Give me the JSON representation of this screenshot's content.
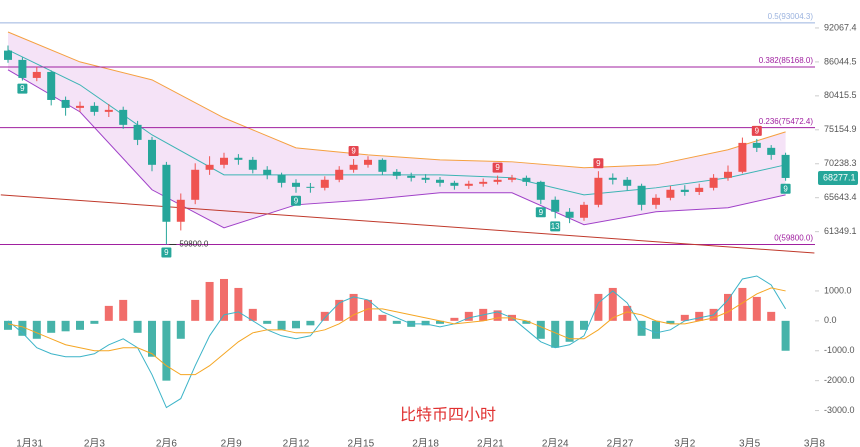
{
  "chart_data": {
    "type": "candlestick",
    "title": "比特币四小时",
    "log_scale": true,
    "ylim": [
      58560,
      97340
    ],
    "yticks": [
      92067.4,
      86044.5,
      80415.5,
      75154.9,
      70238.3,
      65643.4,
      61349.1
    ],
    "up_color": "#ef5350",
    "down_color": "#26a69a",
    "x_labels": [
      {
        "candle": 1.5,
        "label": "1月31"
      },
      {
        "candle": 6,
        "label": "2月3"
      },
      {
        "candle": 11,
        "label": "2月6"
      },
      {
        "candle": 15.5,
        "label": "2月9"
      },
      {
        "candle": 20,
        "label": "2月12"
      },
      {
        "candle": 24.5,
        "label": "2月15"
      },
      {
        "candle": 29,
        "label": "2月18"
      },
      {
        "candle": 33.5,
        "label": "2月21"
      },
      {
        "candle": 38,
        "label": "2月24"
      },
      {
        "candle": 42.5,
        "label": "2月27"
      },
      {
        "candle": 47,
        "label": "3月2"
      },
      {
        "candle": 51.5,
        "label": "3月5"
      },
      {
        "candle": 56,
        "label": "3月8"
      }
    ],
    "candles": {
      "open": [
        88000,
        86390,
        83340,
        84340,
        79760,
        78510,
        78830,
        77890,
        78200,
        75900,
        73660,
        70090,
        62570,
        65370,
        69400,
        70090,
        71080,
        70790,
        69400,
        68700,
        67620,
        67080,
        66950,
        68030,
        69400,
        70090,
        70790,
        69120,
        68570,
        68300,
        68030,
        67620,
        67220,
        67490,
        67750,
        68030,
        68300,
        67750,
        65370,
        63830,
        63070,
        64720,
        68300,
        68030,
        67220,
        64720,
        65630,
        66690,
        66400,
        66950,
        68300,
        69120,
        73220,
        72500,
        71490
      ],
      "high": [
        88900,
        86800,
        85200,
        84600,
        80300,
        79500,
        79400,
        79100,
        78700,
        76500,
        74100,
        70500,
        66200,
        70300,
        71300,
        71800,
        71600,
        71200,
        69900,
        69000,
        68100,
        67600,
        68500,
        69900,
        70900,
        71300,
        71000,
        69500,
        69000,
        68800,
        68400,
        67900,
        67900,
        68200,
        68600,
        68700,
        68600,
        67900,
        65800,
        64300,
        65100,
        69200,
        68900,
        68400,
        67500,
        66100,
        67200,
        67300,
        67500,
        68800,
        70000,
        74000,
        73800,
        72900,
        71800
      ],
      "low": [
        85900,
        82900,
        82800,
        78900,
        77300,
        77900,
        77300,
        77100,
        75300,
        72900,
        69200,
        59800,
        61500,
        64800,
        68700,
        69600,
        70100,
        68900,
        68100,
        67000,
        66300,
        66300,
        66600,
        67700,
        69000,
        69700,
        68700,
        68100,
        67800,
        67600,
        67100,
        66700,
        66800,
        67100,
        67400,
        67700,
        67200,
        64800,
        63000,
        62400,
        62700,
        64400,
        67400,
        66600,
        64000,
        64200,
        65300,
        65900,
        66000,
        66600,
        67900,
        68900,
        71900,
        70800,
        67900
      ],
      "close": [
        86390,
        83340,
        84340,
        79760,
        78510,
        78830,
        77890,
        78200,
        75900,
        73660,
        70090,
        62570,
        65370,
        69400,
        70090,
        71080,
        70790,
        69400,
        68700,
        67620,
        67080,
        66950,
        68030,
        69400,
        70090,
        70790,
        69120,
        68570,
        68300,
        68030,
        67620,
        67220,
        67490,
        67750,
        68030,
        68300,
        67750,
        65370,
        63830,
        63070,
        64720,
        68300,
        68030,
        67220,
        64720,
        65630,
        66690,
        66400,
        66950,
        68300,
        69120,
        73220,
        72500,
        71490,
        68277.1
      ]
    },
    "bollinger": {
      "candle": [
        0,
        5,
        10,
        15,
        20,
        25,
        30,
        35,
        40,
        45,
        50,
        54
      ],
      "upper": [
        91330,
        86040,
        83020,
        76960,
        72500,
        71490,
        70790,
        70510,
        69680,
        70090,
        72220,
        74850
      ],
      "middle": [
        88120,
        82190,
        74400,
        68700,
        68700,
        68700,
        68700,
        68300,
        66020,
        66950,
        68300,
        70090
      ],
      "lower": [
        84690,
        77890,
        66690,
        61820,
        64720,
        65370,
        66290,
        66290,
        62200,
        63830,
        64340,
        66020
      ],
      "upper_color": "#f5a040",
      "middle_color": "#3cb4b4",
      "lower_color": "#a040c8",
      "fill": "#f3dcf5"
    },
    "fib_levels": [
      {
        "price": 93004.3,
        "label": "0.5(93004.3)",
        "color": "#9bb3df"
      },
      {
        "price": 85168.0,
        "label": "0.382(85168.0)",
        "color": "#a020a0"
      },
      {
        "price": 75472.4,
        "label": "0.236(75472.4)",
        "color": "#a020a0"
      },
      {
        "price": 59800.0,
        "label": "0(59800.0)",
        "color": "#a020a0"
      }
    ],
    "trend_line": {
      "candles": [
        -0.5,
        56
      ],
      "prices": [
        66020,
        58790
      ],
      "color": "#c0392b"
    },
    "low_marker": {
      "candle": 11,
      "value": 59800,
      "label": "59800.0"
    },
    "last_price": 68277.1,
    "last_price_color": "#26a69a",
    "td_marks": [
      {
        "candle": 1,
        "count": 9,
        "side": "below",
        "color": "#26a69a"
      },
      {
        "candle": 11,
        "count": 9,
        "side": "below",
        "color": "#26a69a"
      },
      {
        "candle": 20,
        "count": 9,
        "side": "below",
        "color": "#26a69a"
      },
      {
        "candle": 24,
        "count": 9,
        "side": "above",
        "color": "#e5454f"
      },
      {
        "candle": 34,
        "count": 9,
        "side": "above",
        "color": "#e5454f"
      },
      {
        "candle": 37,
        "count": 9,
        "side": "below",
        "color": "#26a69a"
      },
      {
        "candle": 38,
        "count": 13,
        "side": "below",
        "color": "#26a69a"
      },
      {
        "candle": 41,
        "count": 9,
        "side": "above",
        "color": "#e5454f"
      },
      {
        "candle": 52,
        "count": 9,
        "side": "above",
        "color": "#e5454f"
      },
      {
        "candle": 54,
        "count": 9,
        "side": "below",
        "color": "#26a69a"
      }
    ],
    "macd": {
      "ylim": [
        -3650,
        1700
      ],
      "yticks": [
        {
          "value": 1000,
          "label": "1000.0"
        },
        {
          "value": 0,
          "label": "0.0"
        },
        {
          "value": -1000,
          "label": "-1000.0"
        },
        {
          "value": -2000,
          "label": "-2000.0"
        },
        {
          "value": -3000,
          "label": "-3000.0"
        }
      ],
      "histogram": [
        -300,
        -500,
        -600,
        -400,
        -350,
        -300,
        -100,
        500,
        700,
        -400,
        -1200,
        -2000,
        -600,
        700,
        1300,
        1400,
        1100,
        400,
        -100,
        -300,
        -250,
        -150,
        300,
        700,
        900,
        700,
        200,
        -100,
        -200,
        -150,
        -100,
        100,
        300,
        400,
        350,
        200,
        -100,
        -600,
        -900,
        -700,
        -300,
        900,
        1100,
        500,
        -500,
        -600,
        -100,
        200,
        300,
        400,
        900,
        1100,
        800,
        300,
        -1000
      ],
      "dif": [
        0,
        -400,
        -900,
        -1100,
        -1200,
        -1200,
        -1100,
        -800,
        -600,
        -900,
        -1800,
        -2900,
        -2600,
        -1500,
        -500,
        200,
        300,
        0,
        -300,
        -500,
        -600,
        -500,
        100,
        600,
        800,
        700,
        300,
        100,
        -100,
        -100,
        -200,
        -100,
        100,
        200,
        300,
        100,
        -300,
        -700,
        -900,
        -800,
        -500,
        600,
        1000,
        600,
        -200,
        -400,
        -300,
        0,
        100,
        200,
        700,
        1400,
        1500,
        1200,
        400
      ],
      "dea": [
        -100,
        -200,
        -400,
        -600,
        -800,
        -900,
        -1000,
        -1000,
        -900,
        -900,
        -1100,
        -1500,
        -1800,
        -1800,
        -1500,
        -1100,
        -700,
        -400,
        -300,
        -300,
        -400,
        -400,
        -300,
        -100,
        200,
        400,
        400,
        300,
        200,
        100,
        0,
        -100,
        -50,
        0,
        100,
        100,
        0,
        -200,
        -400,
        -600,
        -600,
        -300,
        100,
        300,
        200,
        0,
        -100,
        -100,
        0,
        100,
        300,
        600,
        900,
        1100,
        1000
      ],
      "dif_color": "#3cb4c8",
      "dea_color": "#f5a623",
      "pos_color": "#ef5350",
      "neg_color": "#26a69a"
    }
  }
}
